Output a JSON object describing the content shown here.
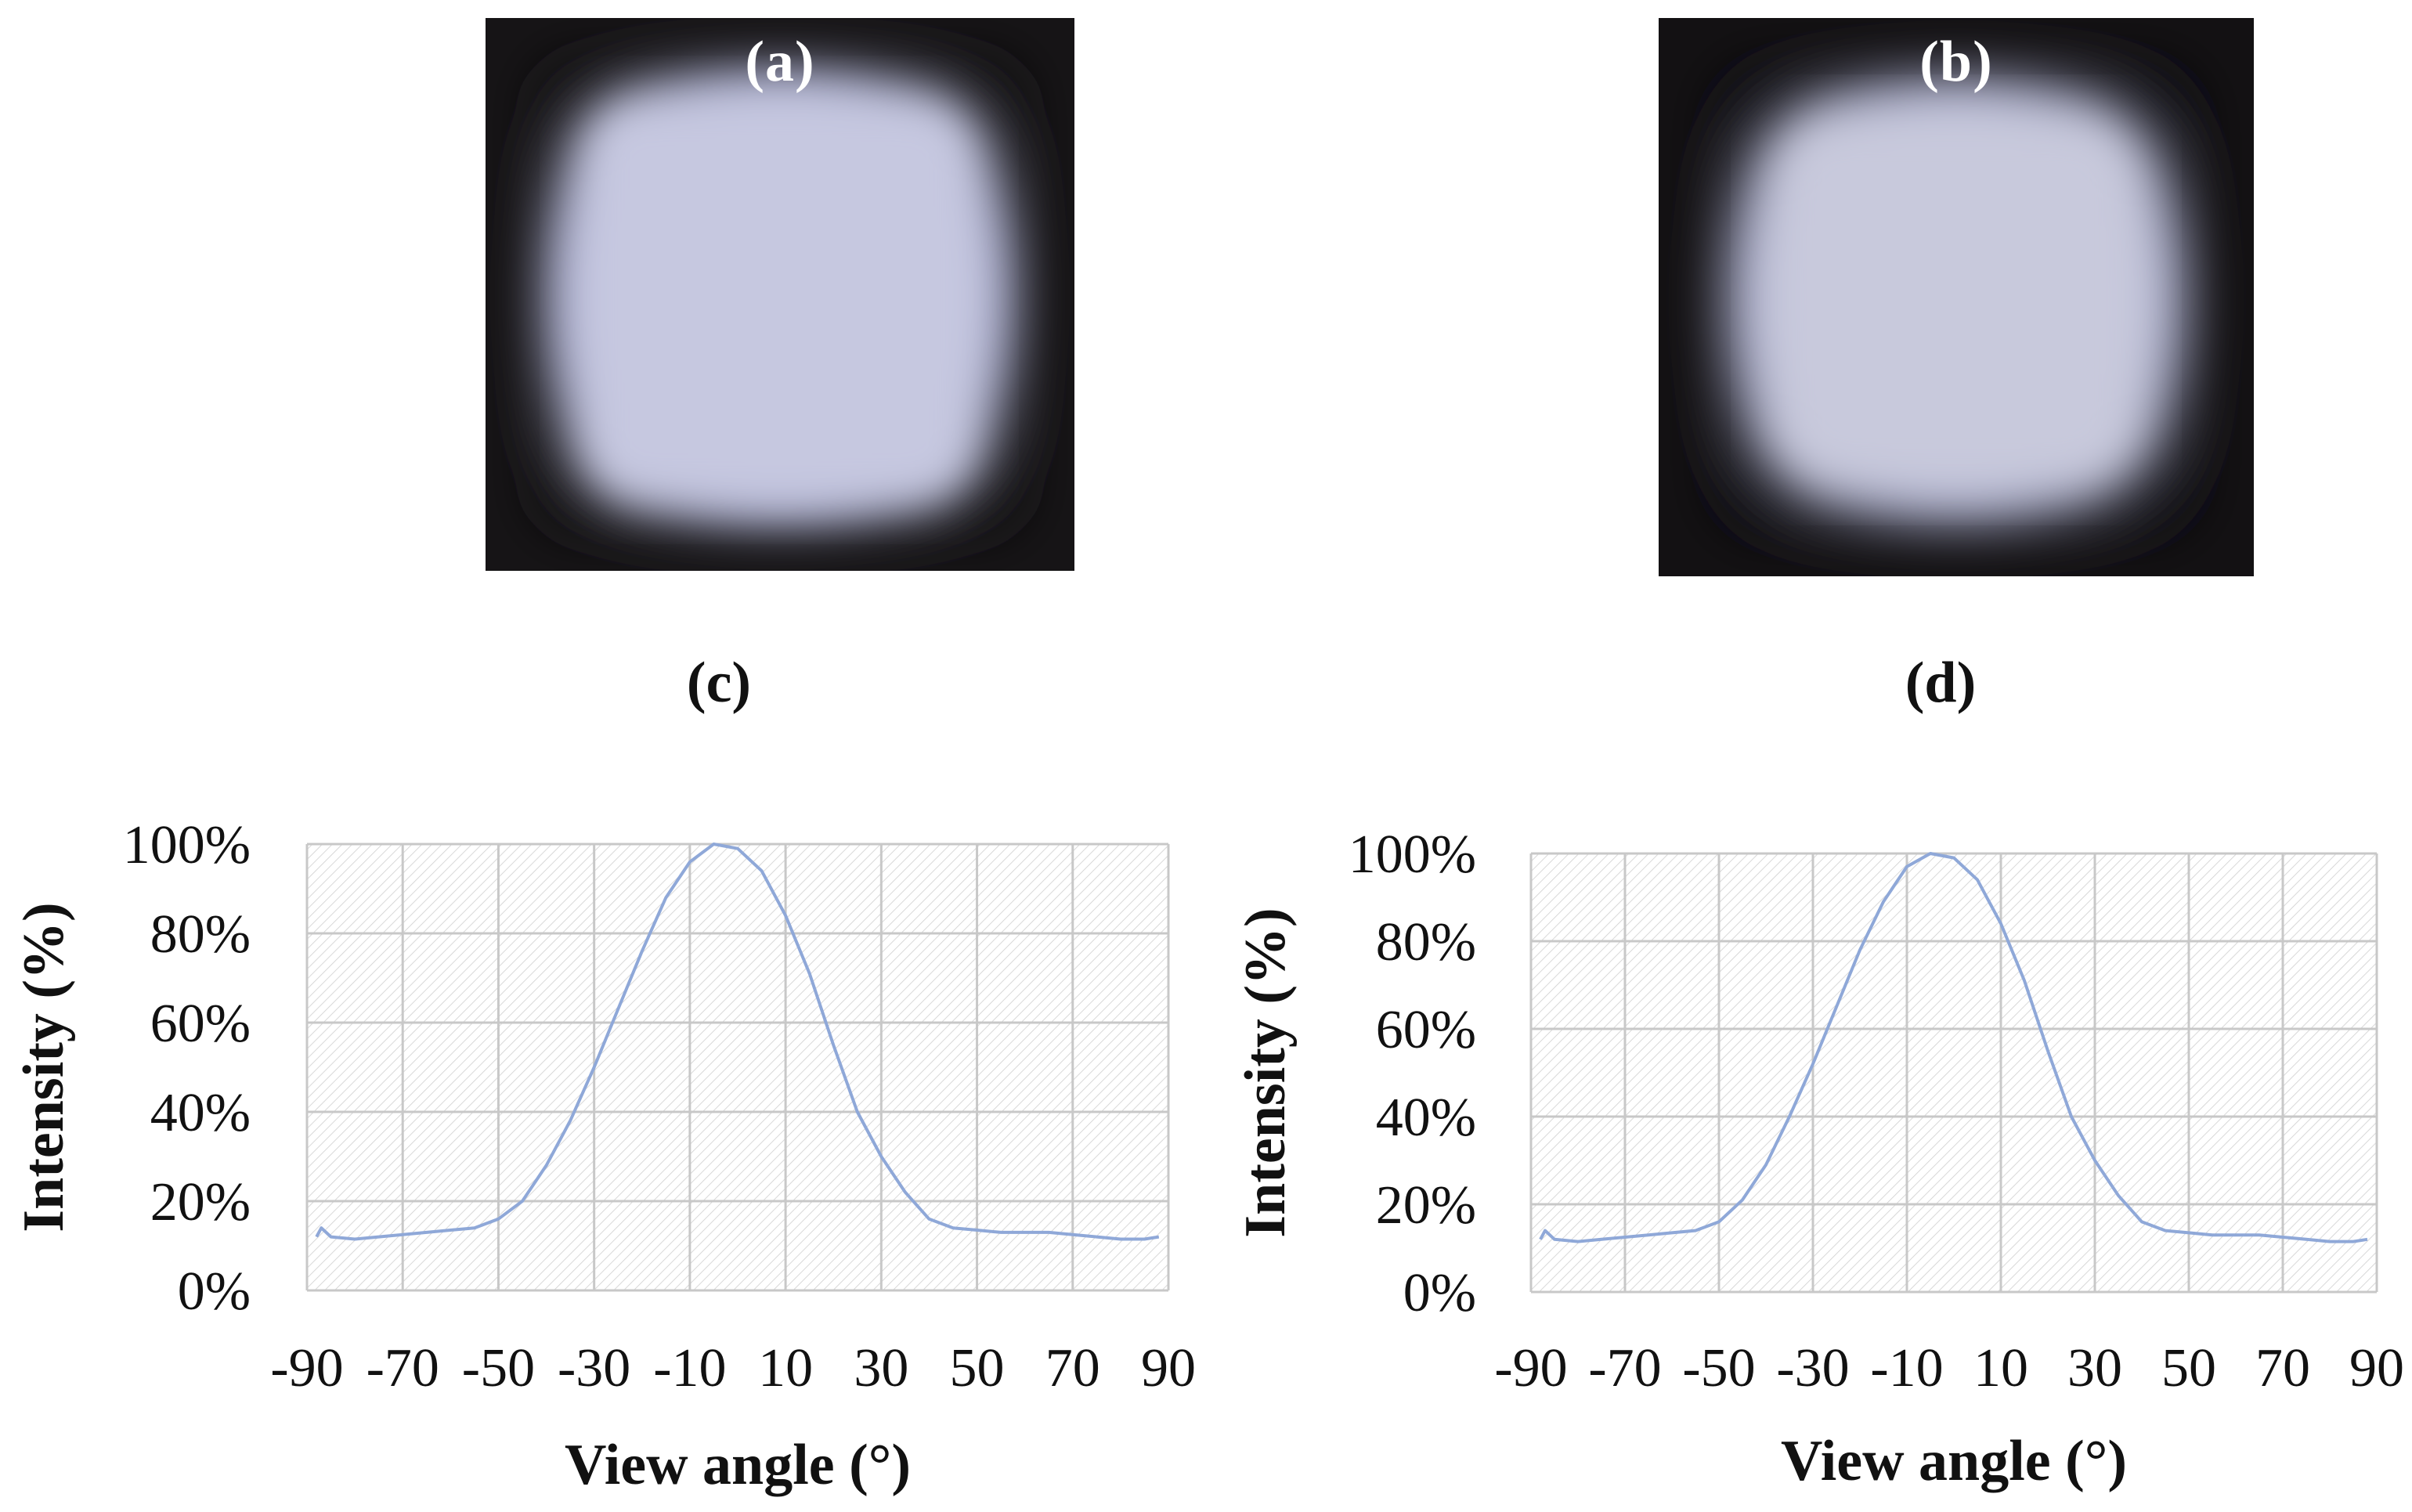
{
  "photos": [
    {
      "label": "(a)"
    },
    {
      "label": "(b)"
    }
  ],
  "colors": {
    "curve": "#8fa8d8",
    "grid": "#c8c8c8",
    "hatch": "#cfcfcf",
    "text": "#111111"
  },
  "chart_data": [
    {
      "type": "line",
      "panel_label": "(c)",
      "xlabel": "View angle (°)",
      "ylabel": "Intensity (%)",
      "xlim": [
        -90,
        90
      ],
      "ylim": [
        0,
        100
      ],
      "x_ticks": [
        -90,
        -70,
        -50,
        -30,
        -10,
        10,
        30,
        50,
        70,
        90
      ],
      "y_ticks": [
        "0%",
        "20%",
        "40%",
        "60%",
        "80%",
        "100%"
      ],
      "grid": true,
      "series": [
        {
          "x": [
            -88,
            -87,
            -85,
            -80,
            -75,
            -70,
            -65,
            -60,
            -55,
            -50,
            -45,
            -40,
            -35,
            -30,
            -25,
            -20,
            -15,
            -10,
            -5,
            0,
            5,
            10,
            15,
            20,
            25,
            30,
            35,
            40,
            45,
            50,
            55,
            60,
            65,
            70,
            75,
            80,
            85,
            88
          ],
          "y": [
            12,
            14,
            12,
            11.5,
            12,
            12.5,
            13,
            13.5,
            14,
            16,
            20,
            28,
            38,
            50,
            63,
            76,
            88,
            96,
            100,
            99,
            94,
            84,
            71,
            55,
            40,
            30,
            22,
            16,
            14,
            13.5,
            13,
            13,
            13,
            12.5,
            12,
            11.5,
            11.5,
            12
          ]
        }
      ]
    },
    {
      "type": "line",
      "panel_label": "(d)",
      "xlabel": "View angle (°)",
      "ylabel": "Intensity (%)",
      "xlim": [
        -90,
        90
      ],
      "ylim": [
        0,
        100
      ],
      "x_ticks": [
        -90,
        -70,
        -50,
        -30,
        -10,
        10,
        30,
        50,
        70,
        90
      ],
      "y_ticks": [
        "0%",
        "20%",
        "40%",
        "60%",
        "80%",
        "100%"
      ],
      "grid": true,
      "series": [
        {
          "x": [
            -88,
            -87,
            -85,
            -80,
            -75,
            -70,
            -65,
            -60,
            -55,
            -50,
            -45,
            -40,
            -35,
            -30,
            -25,
            -20,
            -15,
            -10,
            -5,
            0,
            5,
            10,
            15,
            20,
            25,
            30,
            35,
            40,
            45,
            50,
            55,
            60,
            65,
            70,
            75,
            80,
            85,
            88
          ],
          "y": [
            12,
            14,
            12,
            11.5,
            12,
            12.5,
            13,
            13.5,
            14,
            16,
            21,
            29,
            40,
            52,
            65,
            78,
            89,
            97,
            100,
            99,
            94,
            84,
            71,
            55,
            40,
            30,
            22,
            16,
            14,
            13.5,
            13,
            13,
            13,
            12.5,
            12,
            11.5,
            11.5,
            12
          ]
        }
      ]
    }
  ]
}
